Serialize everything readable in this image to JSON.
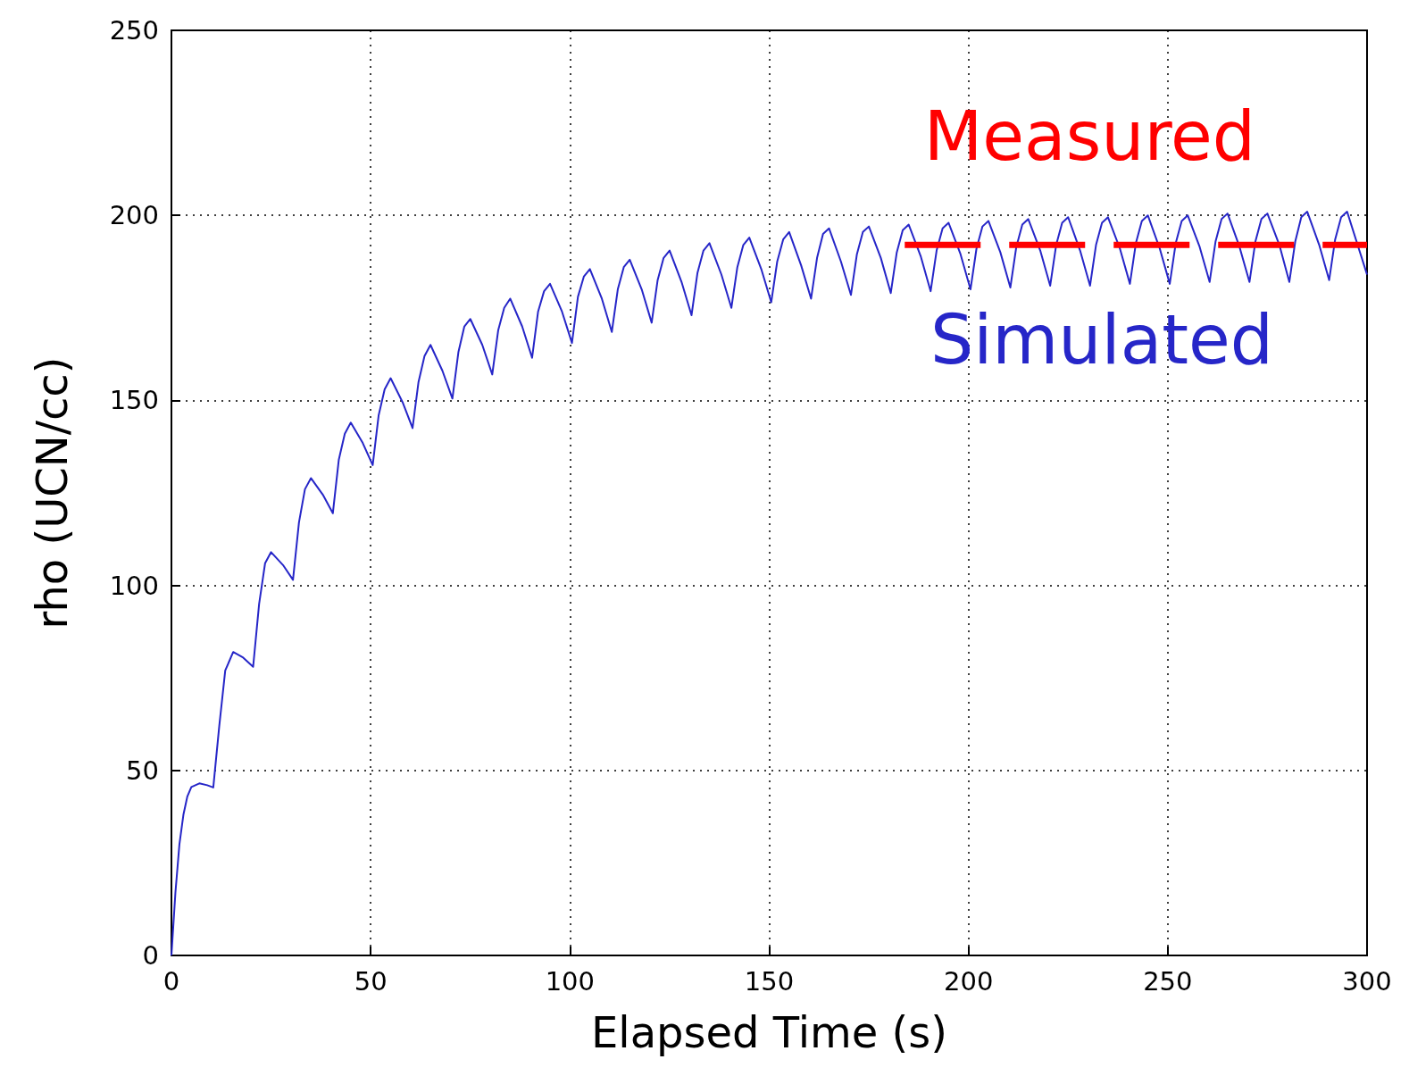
{
  "chart_data": {
    "type": "line",
    "xlabel": "Elapsed Time (s)",
    "ylabel": "rho (UCN/cc)",
    "xlim": [
      0,
      300
    ],
    "ylim": [
      0,
      250
    ],
    "xticks": [
      0,
      50,
      100,
      150,
      200,
      250,
      300
    ],
    "yticks": [
      0,
      50,
      100,
      150,
      200,
      250
    ],
    "grid": true,
    "legend": false,
    "marker": "none",
    "series": [
      {
        "name": "Simulated",
        "color": "#2626c8",
        "line_style": "solid",
        "x": [
          0,
          1,
          2,
          3,
          4,
          5,
          7,
          9,
          10.5,
          12,
          13.5,
          15.5,
          18,
          20.5,
          22,
          23.5,
          25,
          28,
          30.5,
          32,
          33.5,
          35,
          38,
          40.5,
          42,
          43.5,
          45,
          48,
          50.5,
          52,
          53.5,
          55,
          58,
          60.5,
          62,
          63.5,
          65,
          68,
          70.5,
          72,
          73.5,
          75,
          78,
          80.5,
          82,
          83.5,
          85,
          88,
          90.5,
          92,
          93.5,
          95,
          98,
          100.5,
          102,
          103.5,
          105,
          108,
          110.5,
          112,
          113.5,
          115,
          118,
          120.5,
          122,
          123.5,
          125,
          128,
          130.5,
          132,
          133.5,
          135,
          138,
          140.5,
          142,
          143.5,
          145,
          148,
          150.5,
          152,
          153.5,
          155,
          158,
          160.5,
          162,
          163.5,
          165,
          168,
          170.5,
          172,
          173.5,
          175,
          178,
          180.5,
          182,
          183.5,
          185,
          188,
          190.5,
          192,
          193.5,
          195,
          198,
          200.5,
          202,
          203.5,
          205,
          208,
          210.5,
          212,
          213.5,
          215,
          218,
          220.5,
          222,
          223.5,
          225,
          228,
          230.5,
          232,
          233.5,
          235,
          238,
          240.5,
          242,
          243.5,
          245,
          248,
          250.5,
          252,
          253.5,
          255,
          258,
          260.5,
          262,
          263.5,
          265,
          268,
          270.5,
          272,
          273.5,
          275,
          278,
          280.5,
          282,
          283.5,
          285,
          288,
          290.5,
          292,
          293.5,
          295,
          300
        ],
        "values": [
          0,
          17,
          30,
          38,
          43,
          45.5,
          46.5,
          46,
          45.4,
          62,
          77,
          82,
          80.5,
          78,
          95,
          106,
          109,
          105.5,
          101.5,
          117,
          126,
          129,
          124.5,
          119.5,
          134,
          141,
          144,
          138.5,
          132.5,
          146,
          153,
          156,
          149.5,
          142.5,
          155,
          162,
          165,
          158,
          150.5,
          163,
          170,
          172,
          165,
          157,
          169,
          175,
          177.5,
          170,
          161.5,
          174,
          179.5,
          181.5,
          174,
          165.5,
          178,
          183.5,
          185.5,
          177.5,
          168.5,
          180,
          186,
          188,
          180,
          171,
          182.5,
          188.5,
          190.5,
          182,
          173,
          184.5,
          190.5,
          192.5,
          184,
          175,
          186,
          192,
          194,
          185.5,
          176.5,
          187.5,
          193.5,
          195.5,
          186.5,
          177.5,
          188.5,
          195,
          196.5,
          187.5,
          178.5,
          189.5,
          195.5,
          197,
          188.5,
          179,
          190,
          196,
          197.5,
          189,
          179.5,
          190.5,
          196.5,
          198,
          189.5,
          180,
          191,
          197,
          198.5,
          190,
          180.5,
          191.5,
          197.5,
          199,
          190.5,
          181,
          192,
          198,
          199.5,
          190.5,
          181,
          192,
          198,
          199.5,
          191,
          181.5,
          192.5,
          198.5,
          200,
          191,
          181.5,
          192.5,
          198.5,
          200,
          191.5,
          182,
          193,
          199,
          200.5,
          191.5,
          182,
          193,
          199,
          200.5,
          192,
          182,
          193,
          199.5,
          201,
          192,
          182.5,
          193.5,
          199.5,
          201,
          184
        ]
      },
      {
        "name": "Measured",
        "color": "#ff0000",
        "line_style": "dashed",
        "x": [
          184,
          300
        ],
        "values": [
          192,
          192
        ]
      }
    ]
  }
}
